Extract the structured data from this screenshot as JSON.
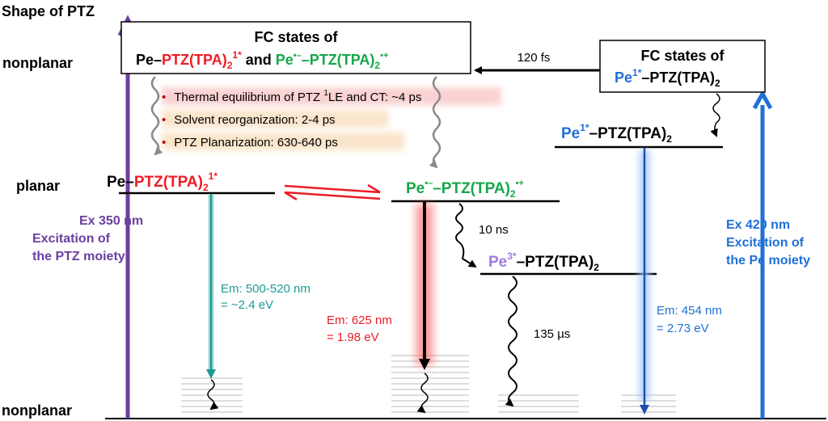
{
  "axis": {
    "title": "Shape of PTZ",
    "top_label": "nonplanar",
    "mid_label": "planar",
    "bottom_label": "nonplanar"
  },
  "fc_left": {
    "line1": "FC states of",
    "pe": "Pe",
    "dash": "–",
    "ptz": "PTZ(TPA)",
    "sub2": "2",
    "sup1": "1*",
    "and": " and ",
    "pe2": "Pe",
    "sup_rad_anion": "•–",
    "ptz2": "–PTZ(TPA)",
    "sub2b": "2",
    "sup_rad_cation": "•+"
  },
  "fc_right": {
    "line1": "FC states of",
    "pe": "Pe",
    "sup": "1*",
    "rest": "–PTZ(TPA)",
    "sub": "2"
  },
  "transfer_label": "120 fs",
  "bullets": [
    {
      "pre": "Thermal equilibrium of PTZ ",
      "sup": "1",
      "post": "LE and CT: ~4 ps"
    },
    {
      "pre": "Solvent reorganization: 2-4 ps",
      "sup": "",
      "post": ""
    },
    {
      "pre": "PTZ Planarization: 630-640 ps",
      "sup": "",
      "post": ""
    }
  ],
  "states": {
    "left": {
      "pe": "Pe",
      "dash": "–",
      "ptz": "PTZ(TPA)",
      "sub": "2",
      "sup": "1*"
    },
    "cs": {
      "pe": "Pe",
      "sup_a": "•–",
      "ptz": "–PTZ(TPA)",
      "sub": "2",
      "sup_c": "•+"
    },
    "triplet": {
      "pe": "Pe",
      "sup": "3*",
      "rest": "–PTZ(TPA)",
      "sub": "2"
    },
    "pe_singlet": {
      "pe": "Pe",
      "sup": "1*",
      "rest": "–PTZ(TPA)",
      "sub": "2"
    }
  },
  "labels": {
    "ex350_1": "Ex 350 nm",
    "ex350_2": "Excitation of",
    "ex350_3": "the PTZ moiety",
    "ex420_1": "Ex 420 nm",
    "ex420_2": "Excitation of",
    "ex420_3": "the Pe moiety",
    "em500_1": "Em: 500-520 nm",
    "em500_2": "= ~2.4 eV",
    "em625_1": "Em: 625 nm",
    "em625_2": "= 1.98 eV",
    "em454_1": "Em: 454 nm",
    "em454_2": "= 2.73 eV",
    "isc": "10 ns",
    "phos": "135 µs"
  },
  "colors": {
    "red": "#ee1c25",
    "green": "#17a74a",
    "blue": "#1f6fd6",
    "purple": "#6b3fa0",
    "lavender": "#a07ae0",
    "teal": "#1d9a96",
    "gray": "#8a8a8a",
    "black": "#000000"
  }
}
